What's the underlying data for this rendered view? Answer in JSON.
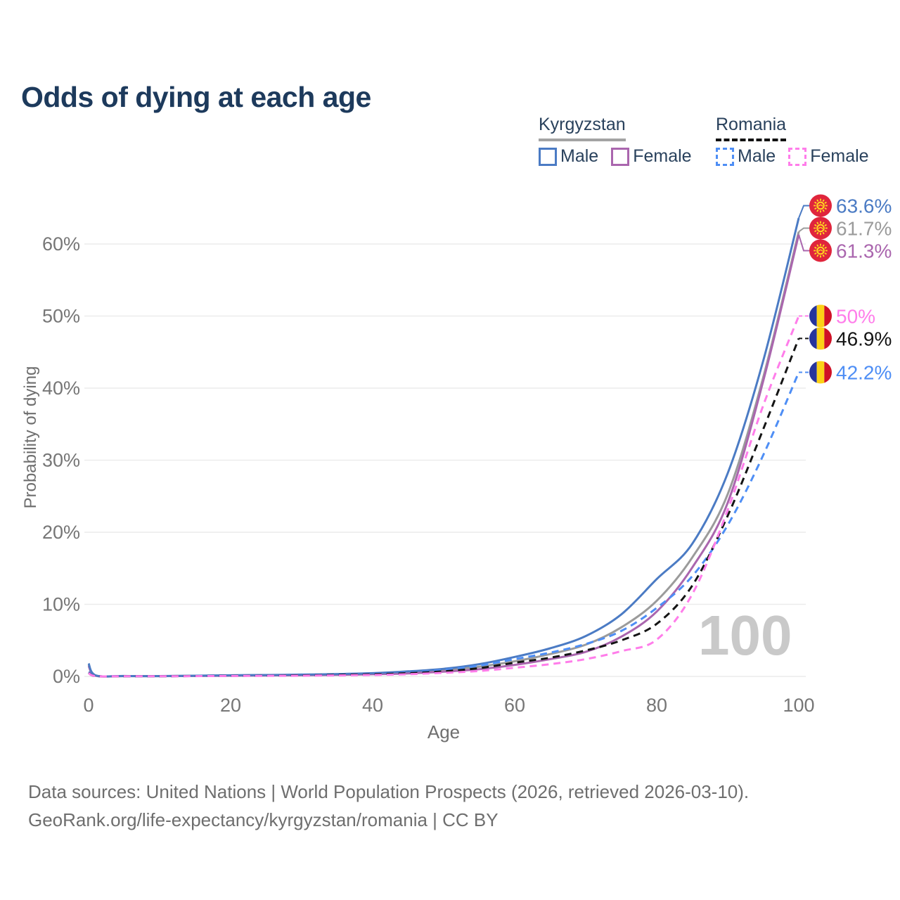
{
  "title": "Odds of dying at each age",
  "watermark_age": "100",
  "legend": {
    "groups": [
      {
        "country": "Kyrgyzstan",
        "underline": "solid",
        "items": [
          {
            "label": "Male",
            "color": "#4b7bc4",
            "dashed": false
          },
          {
            "label": "Female",
            "color": "#aa66ae",
            "dashed": false
          }
        ]
      },
      {
        "country": "Romania",
        "underline": "dashed",
        "items": [
          {
            "label": "Male",
            "color": "#4e8ef5",
            "dashed": true
          },
          {
            "label": "Female",
            "color": "#ff7dea",
            "dashed": true
          }
        ]
      }
    ]
  },
  "axes": {
    "x_title": "Age",
    "y_title": "Probability of dying",
    "x_ticks": [
      {
        "label": "0",
        "age": 0
      },
      {
        "label": "20",
        "age": 20
      },
      {
        "label": "40",
        "age": 40
      },
      {
        "label": "60",
        "age": 60
      },
      {
        "label": "80",
        "age": 80
      },
      {
        "label": "100",
        "age": 100
      }
    ],
    "y_ticks": [
      {
        "label": "0%",
        "pct": 0
      },
      {
        "label": "10%",
        "pct": 10
      },
      {
        "label": "20%",
        "pct": 20
      },
      {
        "label": "30%",
        "pct": 30
      },
      {
        "label": "40%",
        "pct": 40
      },
      {
        "label": "50%",
        "pct": 50
      },
      {
        "label": "60%",
        "pct": 60
      }
    ]
  },
  "chart_data": {
    "type": "line",
    "title": "Odds of dying at each age",
    "xlabel": "Age",
    "ylabel": "Probability of dying",
    "x_range": [
      0,
      100
    ],
    "y_range_pct": [
      0,
      65
    ],
    "grid": "horizontal",
    "legend_position": "top-right",
    "ages": [
      0,
      1,
      5,
      10,
      15,
      20,
      25,
      30,
      35,
      40,
      45,
      50,
      55,
      60,
      65,
      70,
      75,
      80,
      85,
      90,
      95,
      100
    ],
    "series": [
      {
        "name": "Kyrgyzstan Both",
        "country": "Kyrgyzstan",
        "flag": "kyrgyzstan",
        "color": "#9b9b9b",
        "dashed": false,
        "end_label": "61.7%",
        "end_value_pct": 61.7,
        "values_pct": [
          1.6,
          0.12,
          0.05,
          0.04,
          0.08,
          0.13,
          0.16,
          0.2,
          0.27,
          0.37,
          0.55,
          0.85,
          1.35,
          2.1,
          3.1,
          4.4,
          6.8,
          10.5,
          16.5,
          25.3,
          41.5,
          61.7
        ]
      },
      {
        "name": "Kyrgyzstan Female",
        "country": "Kyrgyzstan",
        "flag": "kyrgyzstan",
        "color": "#aa66ae",
        "dashed": false,
        "end_label": "61.3%",
        "end_value_pct": 61.3,
        "values_pct": [
          1.45,
          0.1,
          0.04,
          0.04,
          0.06,
          0.1,
          0.13,
          0.16,
          0.21,
          0.3,
          0.42,
          0.65,
          1.0,
          1.6,
          2.4,
          3.4,
          5.5,
          9.0,
          15.1,
          24.1,
          41.0,
          61.3
        ]
      },
      {
        "name": "Kyrgyzstan Male",
        "country": "Kyrgyzstan",
        "flag": "kyrgyzstan",
        "color": "#4b7bc4",
        "dashed": false,
        "end_label": "63.6%",
        "end_value_pct": 63.6,
        "values_pct": [
          1.8,
          0.15,
          0.06,
          0.05,
          0.1,
          0.16,
          0.2,
          0.25,
          0.33,
          0.45,
          0.7,
          1.05,
          1.7,
          2.7,
          3.9,
          5.6,
          8.6,
          13.5,
          18.4,
          28.2,
          43.8,
          63.6
        ]
      },
      {
        "name": "Romania Male",
        "country": "Romania",
        "flag": "romania",
        "color": "#4e8ef5",
        "dashed": true,
        "end_label": "42.2%",
        "end_value_pct": 42.2,
        "values_pct": [
          0.6,
          0.05,
          0.03,
          0.03,
          0.06,
          0.1,
          0.15,
          0.2,
          0.27,
          0.38,
          0.55,
          0.9,
          1.5,
          2.4,
          3.3,
          4.5,
          6.3,
          9.5,
          13.9,
          21.0,
          30.7,
          42.2
        ]
      },
      {
        "name": "Romania Both",
        "country": "Romania",
        "flag": "romania",
        "color": "#141414",
        "dashed": true,
        "end_label": "46.9%",
        "end_value_pct": 46.9,
        "values_pct": [
          0.5,
          0.04,
          0.02,
          0.02,
          0.05,
          0.08,
          0.11,
          0.15,
          0.21,
          0.3,
          0.45,
          0.7,
          1.15,
          1.9,
          2.6,
          3.6,
          5.0,
          7.3,
          12.6,
          22.3,
          34.3,
          46.9
        ]
      },
      {
        "name": "Romania Female",
        "country": "Romania",
        "flag": "romania",
        "color": "#ff7dea",
        "dashed": true,
        "end_label": "50%",
        "end_value_pct": 50.0,
        "values_pct": [
          0.45,
          0.04,
          0.02,
          0.02,
          0.04,
          0.06,
          0.08,
          0.1,
          0.14,
          0.2,
          0.3,
          0.5,
          0.75,
          1.2,
          1.7,
          2.4,
          3.5,
          5.1,
          11.4,
          23.1,
          37.6,
          50.0
        ]
      }
    ],
    "flag_colors": {
      "kyrgyzstan": {
        "field": "#e0253c",
        "sun": "#ffd91f"
      },
      "romania": {
        "blue": "#27349c",
        "yellow": "#fcd116",
        "red": "#cf1126"
      }
    }
  },
  "footer": {
    "line1": "Data sources: United Nations | World Population Prospects (2026, retrieved 2026-03-10).",
    "line2": "GeoRank.org/life-expectancy/kyrgyzstan/romania | CC BY"
  }
}
